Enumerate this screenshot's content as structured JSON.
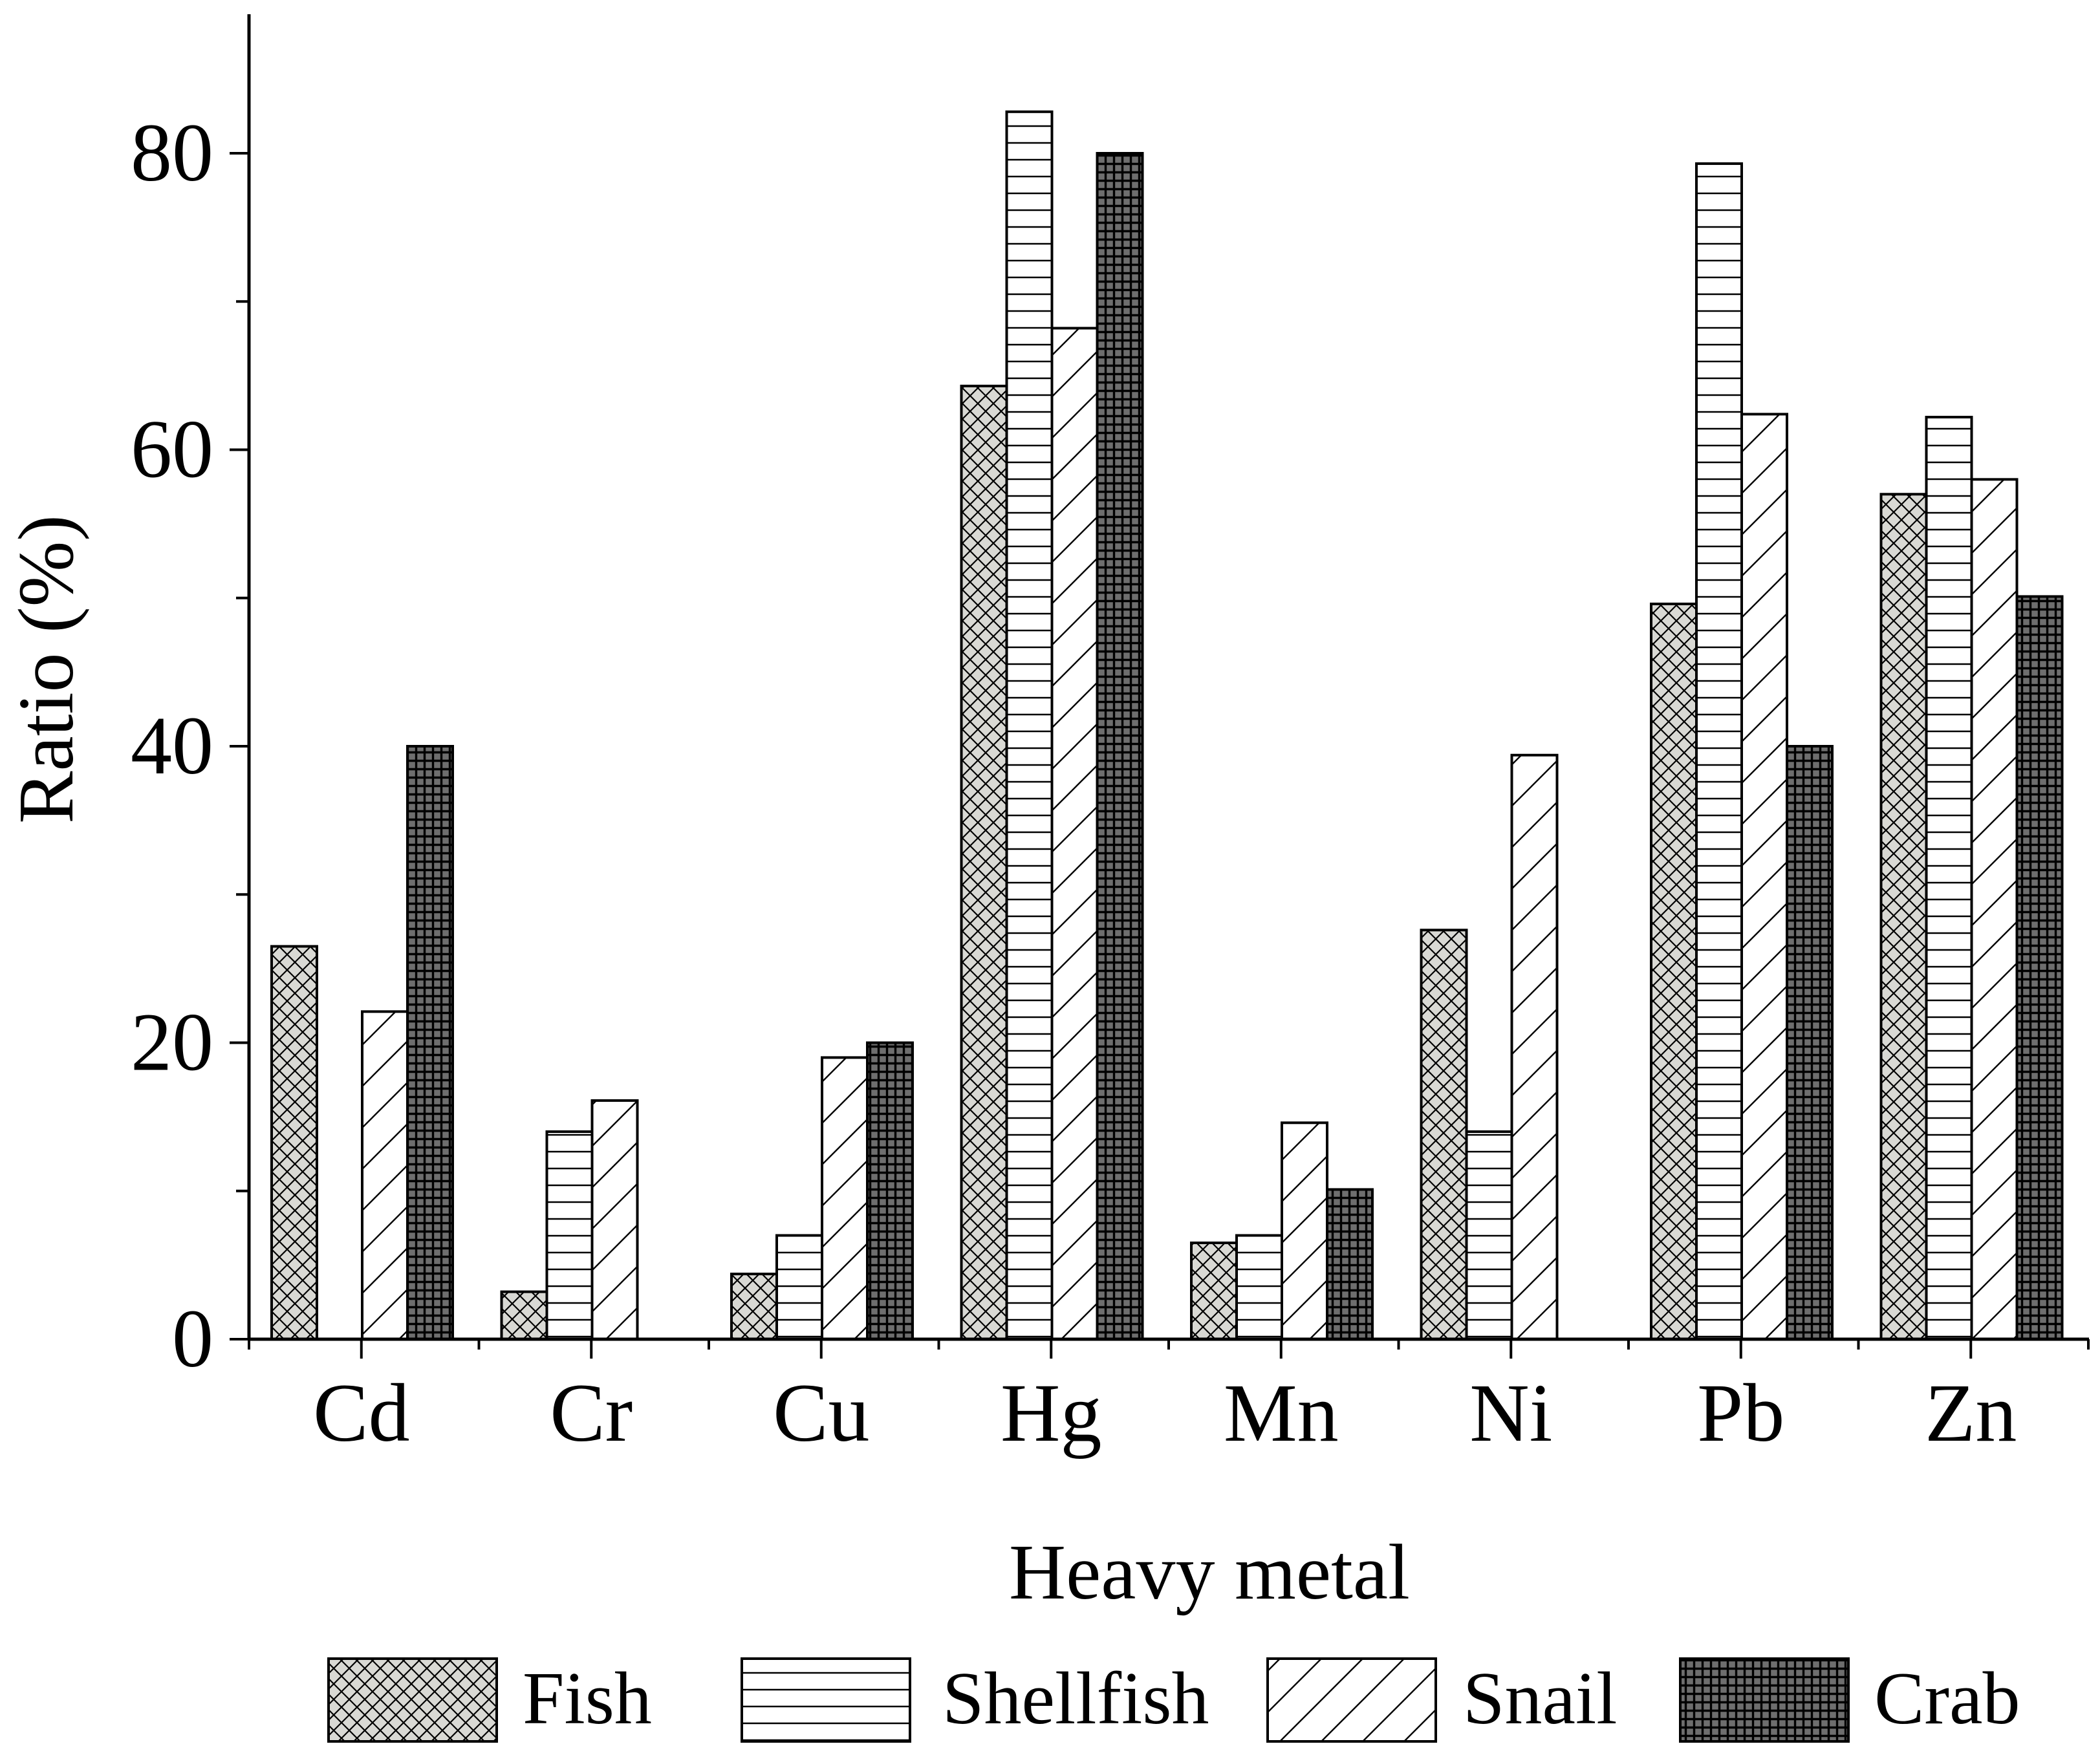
{
  "chart_data": {
    "type": "bar",
    "title": "",
    "xlabel": "Heavy metal",
    "ylabel": "Ratio (%)",
    "ylim": [
      0,
      88
    ],
    "yticks": [
      0,
      20,
      40,
      60,
      80
    ],
    "grid": false,
    "legend_position": "bottom",
    "categories": [
      "Cd",
      "Cr",
      "Cu",
      "Hg",
      "Mn",
      "Ni",
      "Pb",
      "Zn"
    ],
    "series": [
      {
        "name": "Fish",
        "pattern": "crosshatch",
        "values": [
          26.5,
          3.2,
          4.4,
          64.3,
          6.5,
          27.6,
          49.6,
          57.0
        ]
      },
      {
        "name": "Shellfish",
        "pattern": "horizontal",
        "values": [
          0,
          14.0,
          7.0,
          82.8,
          7.0,
          14.0,
          79.3,
          62.2
        ]
      },
      {
        "name": "Snail",
        "pattern": "diagonal",
        "values": [
          22.1,
          16.1,
          19.0,
          68.2,
          14.6,
          39.4,
          62.4,
          58.0
        ]
      },
      {
        "name": "Crab",
        "pattern": "densegrid",
        "values": [
          40.0,
          0,
          20.0,
          80.0,
          10.1,
          0,
          40.0,
          50.1
        ]
      }
    ],
    "colors": {
      "fish_bg": "#d9d9d4",
      "line": "#000000",
      "crab_bg": "#6e6e6e"
    }
  }
}
